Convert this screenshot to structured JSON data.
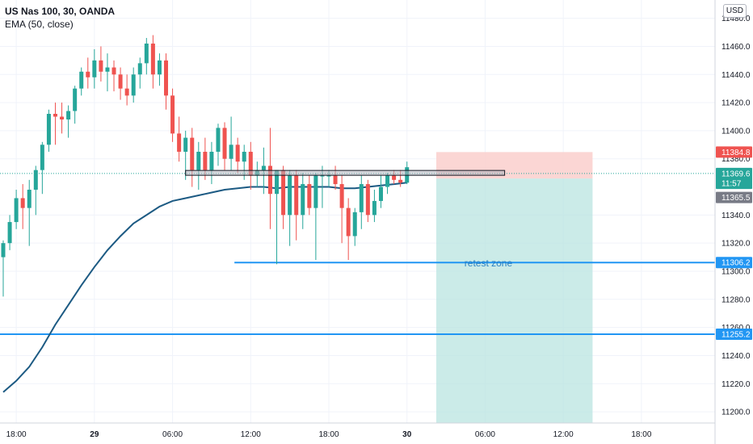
{
  "header": {
    "symbol": "US Nas 100, 30, OANDA",
    "indicator": "EMA (50, close)",
    "currency": "USD"
  },
  "colors": {
    "up": "#26a69a",
    "down": "#ef5350",
    "ema": "#1c5a83",
    "hline": "#2196f3",
    "profit_zone": "#b9e4e0",
    "loss_zone": "#fbd1cf",
    "tag_red": "#ef5350",
    "tag_teal": "#26a69a",
    "tag_gray": "#787b86",
    "tag_blue": "#2196f3"
  },
  "chart_data": {
    "type": "candlestick",
    "y_range": [
      11192,
      11493
    ],
    "y_ticks": [
      "11480.0",
      "11460.0",
      "11440.0",
      "11420.0",
      "11400.0",
      "11380.0",
      "11340.0",
      "11320.0",
      "11300.0",
      "11280.0",
      "11260.0",
      "11240.0",
      "11220.0",
      "11200.0"
    ],
    "x_ticks": [
      {
        "label": "18:00",
        "slot": 2,
        "bold": false
      },
      {
        "label": "29",
        "slot": 14,
        "bold": true
      },
      {
        "label": "06:00",
        "slot": 26,
        "bold": false
      },
      {
        "label": "12:00",
        "slot": 38,
        "bold": false
      },
      {
        "label": "18:00",
        "slot": 50,
        "bold": false
      },
      {
        "label": "30",
        "slot": 62,
        "bold": true
      },
      {
        "label": "06:00",
        "slot": 74,
        "bold": false
      },
      {
        "label": "12:00",
        "slot": 86,
        "bold": false
      },
      {
        "label": "18:00",
        "slot": 98,
        "bold": false
      }
    ],
    "candles": [
      [
        11310,
        11322,
        11282,
        11320
      ],
      [
        11320,
        11340,
        11315,
        11335
      ],
      [
        11335,
        11358,
        11330,
        11352
      ],
      [
        11352,
        11362,
        11330,
        11345
      ],
      [
        11345,
        11365,
        11318,
        11358
      ],
      [
        11358,
        11375,
        11340,
        11372
      ],
      [
        11372,
        11392,
        11355,
        11390
      ],
      [
        11390,
        11415,
        11385,
        11412
      ],
      [
        11412,
        11420,
        11390,
        11410
      ],
      [
        11410,
        11420,
        11398,
        11408
      ],
      [
        11408,
        11418,
        11395,
        11414
      ],
      [
        11414,
        11432,
        11405,
        11430
      ],
      [
        11430,
        11445,
        11425,
        11442
      ],
      [
        11442,
        11452,
        11430,
        11438
      ],
      [
        11438,
        11458,
        11430,
        11450
      ],
      [
        11450,
        11460,
        11435,
        11442
      ],
      [
        11442,
        11455,
        11428,
        11445
      ],
      [
        11445,
        11450,
        11428,
        11440
      ],
      [
        11440,
        11445,
        11422,
        11430
      ],
      [
        11430,
        11440,
        11418,
        11425
      ],
      [
        11425,
        11445,
        11420,
        11440
      ],
      [
        11440,
        11452,
        11430,
        11448
      ],
      [
        11448,
        11466,
        11440,
        11462
      ],
      [
        11462,
        11468,
        11430,
        11440
      ],
      [
        11440,
        11455,
        11432,
        11450
      ],
      [
        11450,
        11455,
        11415,
        11425
      ],
      [
        11425,
        11430,
        11392,
        11398
      ],
      [
        11398,
        11410,
        11378,
        11385
      ],
      [
        11385,
        11400,
        11365,
        11395
      ],
      [
        11395,
        11402,
        11360,
        11372
      ],
      [
        11372,
        11392,
        11358,
        11385
      ],
      [
        11385,
        11395,
        11365,
        11372
      ],
      [
        11372,
        11392,
        11362,
        11385
      ],
      [
        11385,
        11405,
        11375,
        11402
      ],
      [
        11402,
        11406,
        11372,
        11380
      ],
      [
        11380,
        11410,
        11372,
        11390
      ],
      [
        11390,
        11395,
        11370,
        11378
      ],
      [
        11378,
        11390,
        11365,
        11385
      ],
      [
        11385,
        11392,
        11358,
        11368
      ],
      [
        11368,
        11378,
        11360,
        11372
      ],
      [
        11372,
        11388,
        11355,
        11375
      ],
      [
        11375,
        11402,
        11330,
        11355
      ],
      [
        11355,
        11372,
        11305,
        11372
      ],
      [
        11372,
        11375,
        11330,
        11340
      ],
      [
        11340,
        11372,
        11318,
        11368
      ],
      [
        11368,
        11372,
        11322,
        11340
      ],
      [
        11340,
        11370,
        11330,
        11362
      ],
      [
        11362,
        11368,
        11340,
        11345
      ],
      [
        11345,
        11370,
        11308,
        11368
      ],
      [
        11368,
        11375,
        11345,
        11368
      ],
      [
        11368,
        11372,
        11360,
        11368
      ],
      [
        11368,
        11375,
        11358,
        11362
      ],
      [
        11362,
        11368,
        11320,
        11345
      ],
      [
        11345,
        11352,
        11308,
        11325
      ],
      [
        11325,
        11345,
        11318,
        11342
      ],
      [
        11342,
        11368,
        11330,
        11362
      ],
      [
        11362,
        11365,
        11335,
        11340
      ],
      [
        11340,
        11358,
        11335,
        11350
      ],
      [
        11350,
        11368,
        11345,
        11360
      ],
      [
        11360,
        11370,
        11355,
        11368
      ],
      [
        11368,
        11372,
        11362,
        11365
      ],
      [
        11365,
        11372,
        11360,
        11363
      ],
      [
        11363,
        11378,
        11362,
        11374
      ]
    ],
    "ema": [
      [
        0,
        11214
      ],
      [
        2,
        11222
      ],
      [
        4,
        11232
      ],
      [
        6,
        11246
      ],
      [
        8,
        11262
      ],
      [
        10,
        11276
      ],
      [
        12,
        11290
      ],
      [
        14,
        11303
      ],
      [
        16,
        11315
      ],
      [
        18,
        11325
      ],
      [
        20,
        11334
      ],
      [
        22,
        11340
      ],
      [
        24,
        11346
      ],
      [
        26,
        11350
      ],
      [
        28,
        11352
      ],
      [
        30,
        11354
      ],
      [
        32,
        11356
      ],
      [
        34,
        11358
      ],
      [
        36,
        11359
      ],
      [
        38,
        11360
      ],
      [
        40,
        11360
      ],
      [
        42,
        11359
      ],
      [
        44,
        11360
      ],
      [
        46,
        11360
      ],
      [
        48,
        11360
      ],
      [
        50,
        11360
      ],
      [
        52,
        11359
      ],
      [
        54,
        11359
      ],
      [
        56,
        11360
      ],
      [
        58,
        11361
      ],
      [
        60,
        11362
      ],
      [
        62,
        11363
      ]
    ],
    "box_line": {
      "price": 11370,
      "start_slot": 28,
      "end_slot": 77
    },
    "h_lines": [
      {
        "price": 11306.2,
        "start_slot": 36
      },
      {
        "price": 11255.2,
        "start_slot": 0
      }
    ],
    "position": {
      "start_slot": 66.5,
      "end_slot": 90.5,
      "entry": 11366,
      "stop": 11384.8,
      "target": 11192,
      "loss_end_slot": 87.5
    },
    "annotation": {
      "text": "retest zone",
      "price": 11300,
      "slot": 74.5
    },
    "price_tags": [
      {
        "text": "11384.8",
        "price": 11384.8,
        "color": "tag_red"
      },
      {
        "text": "11369.6",
        "price": 11369.6,
        "color": "tag_teal"
      },
      {
        "text": "11:57",
        "price": 11362.5,
        "color": "tag_teal"
      },
      {
        "text": "11365.5",
        "price": 11352.5,
        "color": "tag_gray"
      },
      {
        "text": "11306.2",
        "price": 11306.2,
        "color": "tag_blue"
      },
      {
        "text": "11255.2",
        "price": 11255.2,
        "color": "tag_blue"
      }
    ]
  }
}
